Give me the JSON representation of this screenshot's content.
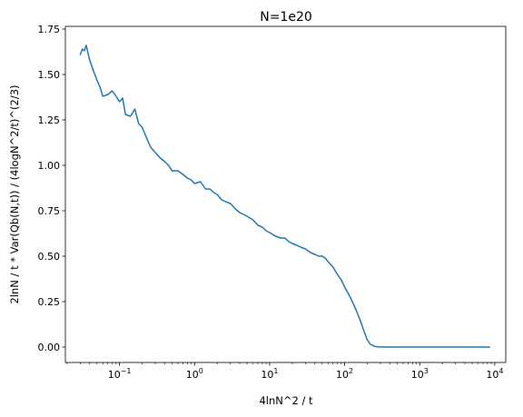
{
  "chart_data": {
    "type": "line",
    "title": "N=1e20",
    "xlabel": "4lnN^2 / t",
    "ylabel": "2lnN / t * Var(Qb(N,t)) / (4logN^2/t)^(2/3)",
    "x_scale": "log",
    "xlim": [
      0.019,
      14000
    ],
    "ylim": [
      -0.085,
      1.765
    ],
    "x_ticks": [
      {
        "value": 0.1,
        "base": "10",
        "exp": "−1"
      },
      {
        "value": 1,
        "base": "10",
        "exp": "0"
      },
      {
        "value": 10,
        "base": "10",
        "exp": "1"
      },
      {
        "value": 100,
        "base": "10",
        "exp": "2"
      },
      {
        "value": 1000,
        "base": "10",
        "exp": "3"
      },
      {
        "value": 10000,
        "base": "10",
        "exp": "4"
      }
    ],
    "y_ticks": [
      {
        "value": 0.0,
        "label": "0.00"
      },
      {
        "value": 0.25,
        "label": "0.25"
      },
      {
        "value": 0.5,
        "label": "0.50"
      },
      {
        "value": 0.75,
        "label": "0.75"
      },
      {
        "value": 1.0,
        "label": "1.00"
      },
      {
        "value": 1.25,
        "label": "1.25"
      },
      {
        "value": 1.5,
        "label": "1.50"
      },
      {
        "value": 1.75,
        "label": "1.75"
      }
    ],
    "grid": false,
    "line_color": "#1f77b4",
    "series": [
      {
        "x": [
          0.03,
          0.032,
          0.034,
          0.036,
          0.04,
          0.045,
          0.05,
          0.055,
          0.06,
          0.07,
          0.08,
          0.09,
          0.1,
          0.11,
          0.12,
          0.14,
          0.16,
          0.18,
          0.2,
          0.23,
          0.26,
          0.3,
          0.35,
          0.4,
          0.45,
          0.5,
          0.6,
          0.7,
          0.8,
          0.9,
          1.0,
          1.2,
          1.4,
          1.6,
          1.8,
          2.0,
          2.3,
          2.6,
          3.0,
          3.5,
          4.0,
          4.5,
          5.0,
          6.0,
          7.0,
          8.0,
          9.0,
          10,
          12,
          14,
          16,
          18,
          20,
          23,
          26,
          30,
          35,
          40,
          45,
          50,
          55,
          60,
          70,
          80,
          90,
          100,
          110,
          120,
          140,
          160,
          180,
          200,
          220,
          250,
          280,
          320,
          400,
          500,
          700,
          1000,
          2000,
          5000,
          8500
        ],
        "y": [
          1.61,
          1.64,
          1.63,
          1.66,
          1.58,
          1.52,
          1.47,
          1.43,
          1.38,
          1.39,
          1.41,
          1.38,
          1.35,
          1.37,
          1.28,
          1.27,
          1.31,
          1.23,
          1.21,
          1.15,
          1.1,
          1.07,
          1.04,
          1.02,
          1.0,
          0.97,
          0.97,
          0.95,
          0.93,
          0.92,
          0.9,
          0.91,
          0.87,
          0.87,
          0.85,
          0.84,
          0.81,
          0.8,
          0.79,
          0.76,
          0.74,
          0.73,
          0.72,
          0.7,
          0.67,
          0.66,
          0.64,
          0.63,
          0.61,
          0.6,
          0.6,
          0.58,
          0.57,
          0.56,
          0.55,
          0.54,
          0.52,
          0.51,
          0.5,
          0.5,
          0.49,
          0.47,
          0.44,
          0.4,
          0.37,
          0.33,
          0.3,
          0.27,
          0.21,
          0.15,
          0.09,
          0.04,
          0.015,
          0.004,
          0.001,
          0.0,
          0.0,
          0.0,
          0.0,
          0.0,
          0.0,
          0.0,
          0.0
        ]
      }
    ]
  }
}
